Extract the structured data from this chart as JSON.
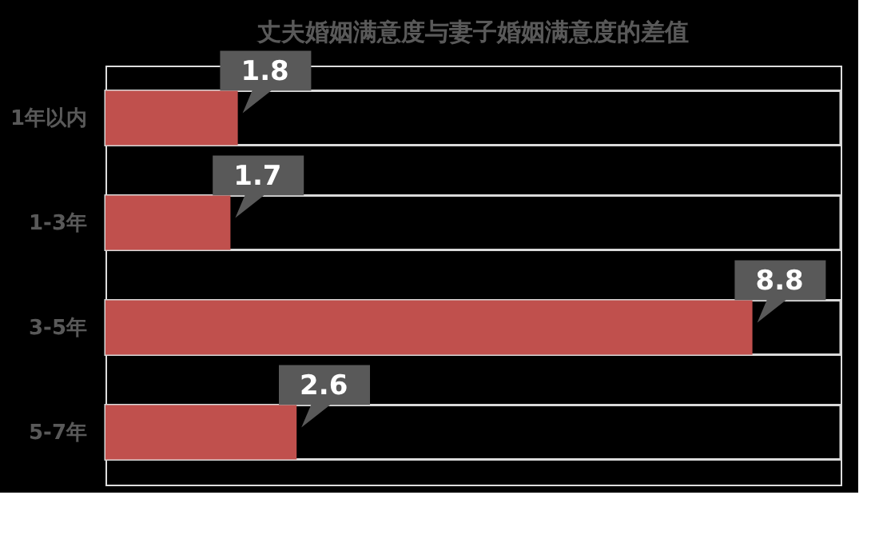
{
  "chart_data": {
    "type": "bar",
    "orientation": "horizontal",
    "title": "丈夫婚姻满意度与妻子婚姻满意度的差值",
    "categories": [
      "1年以内",
      "1-3年",
      "3-5年",
      "5-7年"
    ],
    "values": [
      1.8,
      1.7,
      8.8,
      2.6
    ],
    "color": "#c0504d",
    "xlim": [
      0,
      10
    ],
    "data_labels": true,
    "tick_labels": "y",
    "grid": false
  }
}
